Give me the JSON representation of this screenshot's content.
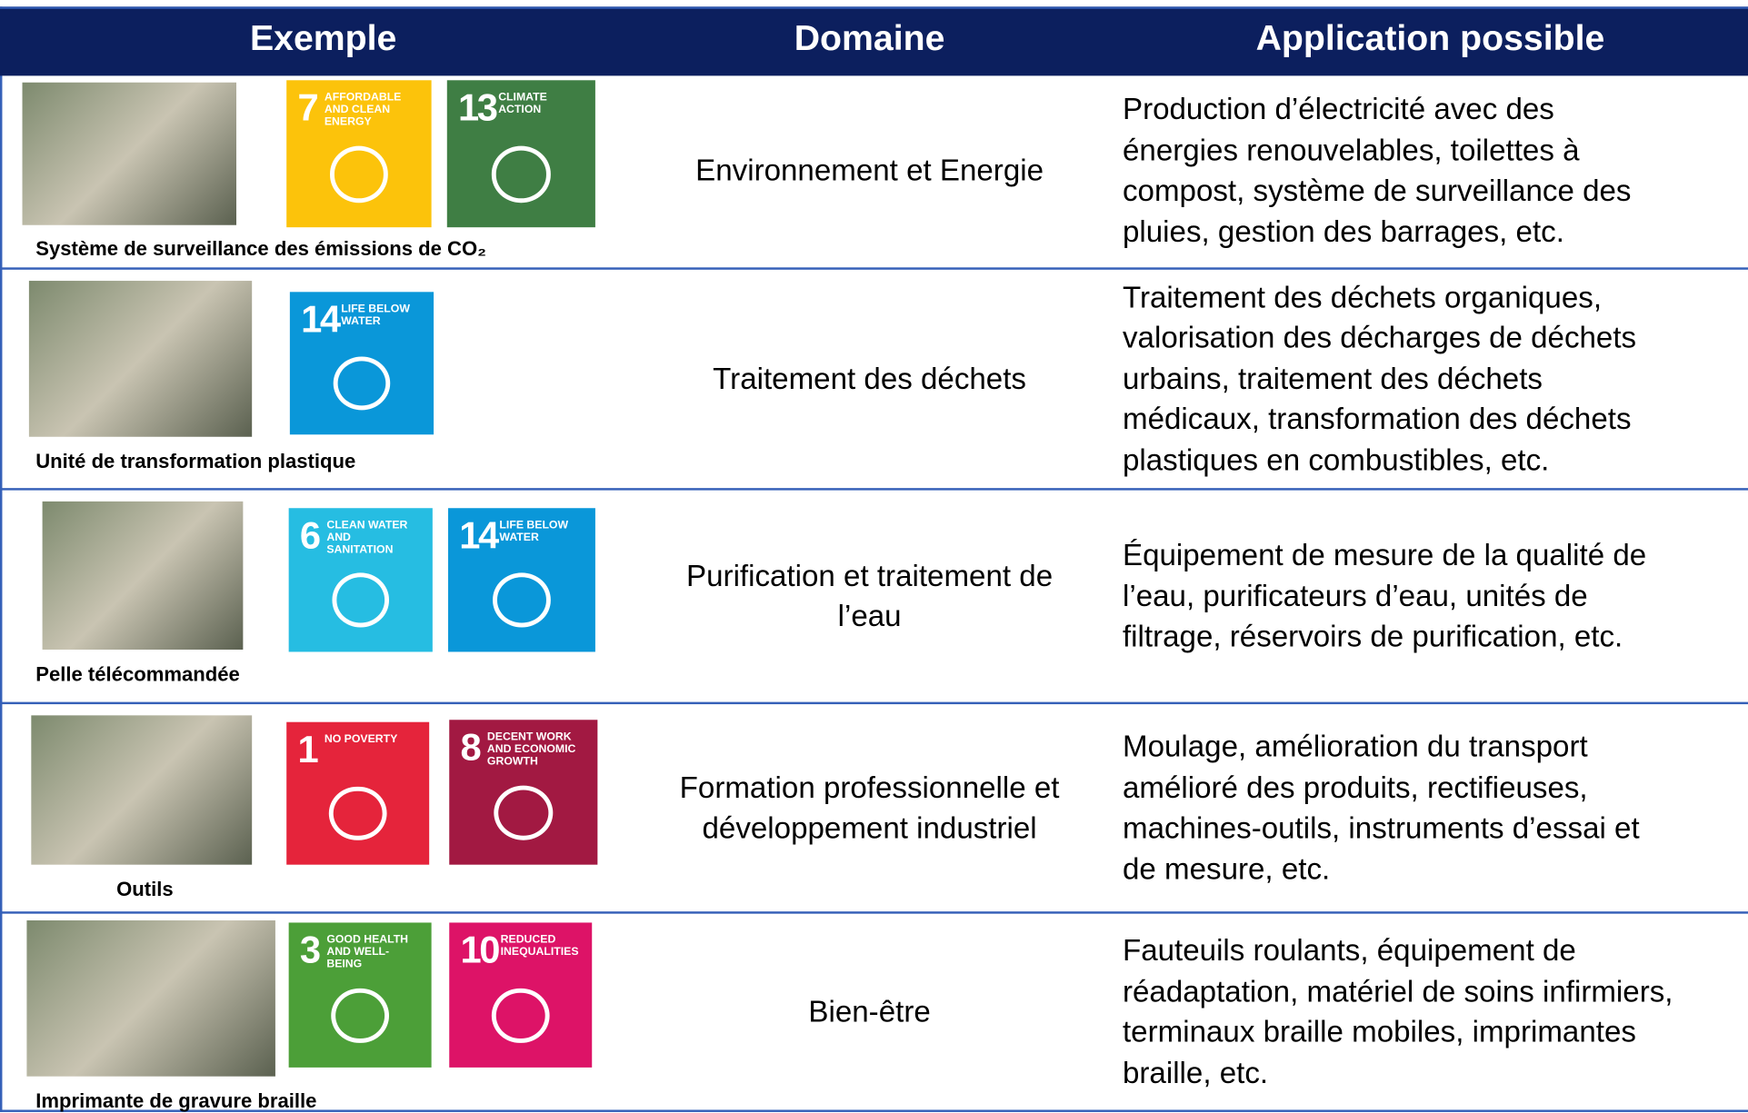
{
  "header": {
    "columns": [
      "Exemple",
      "Domaine",
      "Application possible"
    ]
  },
  "rows": [
    {
      "caption": "Système de surveillance des émissions de CO₂",
      "sdgs": [
        {
          "number": "7",
          "label": "AFFORDABLE AND CLEAN ENERGY",
          "color": "#fcc30b"
        },
        {
          "number": "13",
          "label": "CLIMATE ACTION",
          "color": "#3f7e44"
        }
      ],
      "domain": [
        "Environnement et Energie"
      ],
      "application": [
        "Production d’électricité avec des",
        "énergies renouvelables, toilettes à",
        "compost, système de surveillance des",
        "pluies, gestion des barrages, etc."
      ]
    },
    {
      "caption": "Unité de transformation plastique",
      "sdgs": [
        {
          "number": "14",
          "label": "LIFE BELOW WATER",
          "color": "#0a97d9"
        }
      ],
      "domain": [
        "Traitement des déchets"
      ],
      "application": [
        "Traitement des déchets organiques,",
        "valorisation des décharges de déchets",
        "urbains, traitement des déchets",
        "médicaux, transformation des déchets",
        "plastiques en combustibles, etc."
      ]
    },
    {
      "caption": "Pelle télécommandée",
      "sdgs": [
        {
          "number": "6",
          "label": "CLEAN WATER AND SANITATION",
          "color": "#26bde2"
        },
        {
          "number": "14",
          "label": "LIFE BELOW WATER",
          "color": "#0a97d9"
        }
      ],
      "domain": [
        "Purification et traitement de",
        "l’eau"
      ],
      "application": [
        "Équipement de mesure de la qualité de",
        "l’eau, purificateurs d’eau, unités de",
        "filtrage, réservoirs de purification, etc."
      ]
    },
    {
      "caption": "Outils",
      "sdgs": [
        {
          "number": "1",
          "label": "NO POVERTY",
          "color": "#e5243b"
        },
        {
          "number": "8",
          "label": "DECENT WORK AND ECONOMIC GROWTH",
          "color": "#a21942"
        }
      ],
      "domain": [
        "Formation professionnelle et",
        "développement industriel"
      ],
      "application": [
        "Moulage, amélioration du transport",
        "amélioré des produits, rectifieuses,",
        "machines-outils, instruments d’essai et",
        "de mesure, etc."
      ]
    },
    {
      "caption": "Imprimante de gravure braille",
      "sdgs": [
        {
          "number": "3",
          "label": "GOOD HEALTH AND WELL-BEING",
          "color": "#4c9f38"
        },
        {
          "number": "10",
          "label": "REDUCED INEQUALITIES",
          "color": "#dd1367"
        }
      ],
      "domain": [
        "Bien-être"
      ],
      "application": [
        "Fauteuils roulants, équipement de",
        "réadaptation, matériel de soins infirmiers,",
        "terminaux braille mobiles, imprimantes",
        "braille, etc."
      ]
    }
  ]
}
